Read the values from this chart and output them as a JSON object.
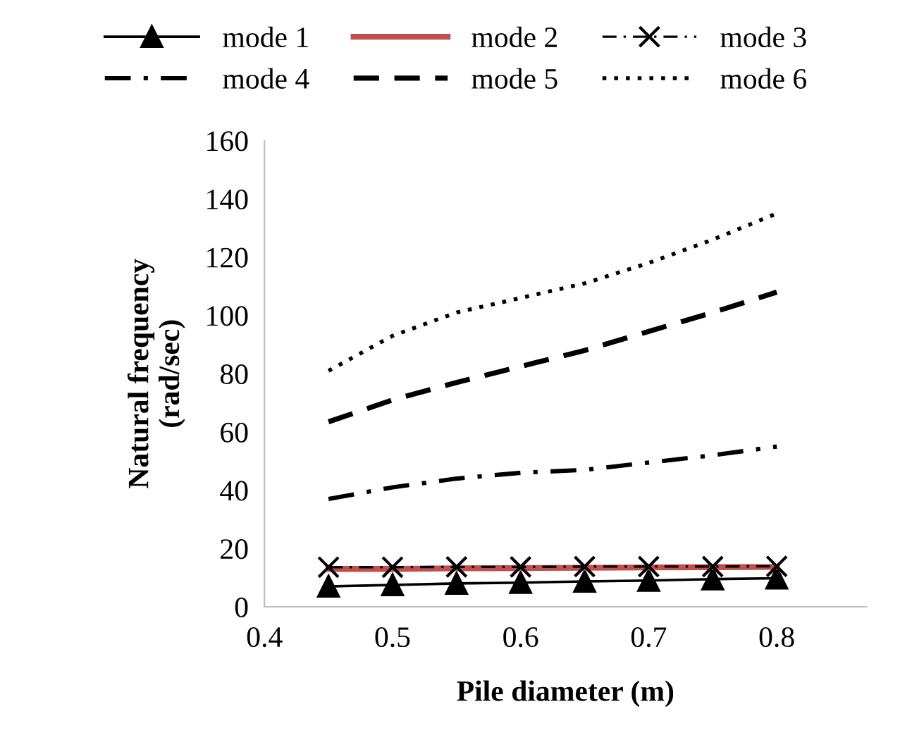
{
  "chart_data": {
    "type": "line",
    "xlabel": "Pile diameter (m)",
    "ylabel": "Natural frequency\n(rad/sec)",
    "x": [
      0.45,
      0.5,
      0.55,
      0.6,
      0.65,
      0.7,
      0.75,
      0.8
    ],
    "xlim": [
      0.4,
      0.87
    ],
    "xticks": [
      0.4,
      0.5,
      0.6,
      0.7,
      0.8
    ],
    "ylim": [
      0,
      160
    ],
    "yticks": [
      0,
      20,
      40,
      60,
      80,
      100,
      120,
      140,
      160
    ],
    "grid": false,
    "legend": "top",
    "series": [
      {
        "name": "mode 1",
        "color": "#000000",
        "marker": "triangle",
        "line_style": "solid",
        "values": [
          7,
          7.5,
          8,
          8.3,
          8.7,
          9,
          9.5,
          9.8
        ]
      },
      {
        "name": "mode 2",
        "color": "#c0504d",
        "marker": "none",
        "line_style": "solid",
        "values": [
          13,
          13,
          13.2,
          13.3,
          13.4,
          13.5,
          13.6,
          13.7
        ]
      },
      {
        "name": "mode 3",
        "color": "#000000",
        "marker": "cross",
        "line_style": "dashdot",
        "values": [
          13.6,
          13.6,
          13.7,
          13.7,
          13.8,
          13.8,
          13.8,
          13.9
        ]
      },
      {
        "name": "mode 4",
        "color": "#000000",
        "marker": "none",
        "line_style": "dashdot",
        "values": [
          37,
          41,
          44,
          46,
          47,
          49.5,
          52,
          55
        ]
      },
      {
        "name": "mode 5",
        "color": "#000000",
        "marker": "none",
        "line_style": "dashed",
        "values": [
          63.5,
          71,
          77,
          82.5,
          88,
          94.5,
          101,
          108
        ]
      },
      {
        "name": "mode 6",
        "color": "#000000",
        "marker": "none",
        "line_style": "dotted",
        "values": [
          81,
          93,
          101,
          106,
          111,
          118,
          126,
          135
        ]
      }
    ]
  }
}
